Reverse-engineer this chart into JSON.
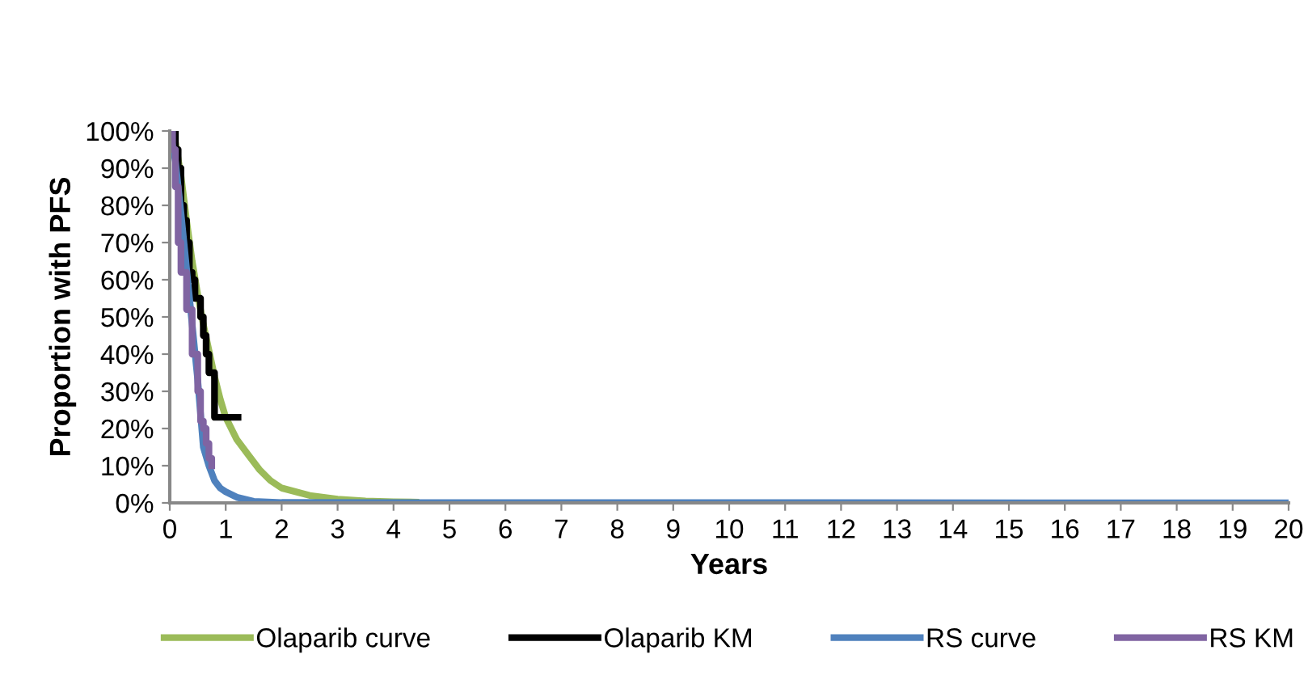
{
  "chart_data": {
    "type": "line",
    "xlabel": "Years",
    "ylabel": "Proportion with PFS",
    "xlim": [
      0,
      20
    ],
    "xticks": [
      0,
      1,
      2,
      3,
      4,
      5,
      6,
      7,
      8,
      9,
      10,
      11,
      12,
      13,
      14,
      15,
      16,
      17,
      18,
      19,
      20
    ],
    "ylim": [
      0,
      100
    ],
    "yticks": [
      {
        "value": 0,
        "label": "0%"
      },
      {
        "value": 10,
        "label": "10%"
      },
      {
        "value": 20,
        "label": "20%"
      },
      {
        "value": 30,
        "label": "30%"
      },
      {
        "value": 40,
        "label": "40%"
      },
      {
        "value": 50,
        "label": "50%"
      },
      {
        "value": 60,
        "label": "60%"
      },
      {
        "value": 70,
        "label": "70%"
      },
      {
        "value": 80,
        "label": "80%"
      },
      {
        "value": 90,
        "label": "90%"
      },
      {
        "value": 100,
        "label": "100%"
      }
    ],
    "grid": false,
    "legend": "bottom",
    "marker": "none",
    "line_style": "solid",
    "series": [
      {
        "name": "Olaparib curve",
        "color": "#9bbb59",
        "x": [
          0,
          0.1,
          0.2,
          0.3,
          0.4,
          0.5,
          0.6,
          0.7,
          0.8,
          0.9,
          1,
          1.2,
          1.4,
          1.6,
          1.8,
          2,
          2.5,
          3,
          3.5,
          4,
          4.4
        ],
        "values": [
          100,
          97,
          88,
          76,
          65,
          56,
          48,
          41,
          34,
          28,
          23,
          17,
          13,
          9,
          6,
          4,
          2,
          1,
          0.5,
          0.3,
          0.2
        ]
      },
      {
        "name": "Olaparib KM",
        "color": "#000000",
        "type": "step",
        "x": [
          0,
          0.1,
          0.15,
          0.2,
          0.25,
          0.3,
          0.35,
          0.4,
          0.45,
          0.55,
          0.6,
          0.65,
          0.7,
          0.8,
          1.22
        ],
        "values": [
          100,
          95,
          90,
          80,
          76,
          70,
          62,
          60,
          55,
          50,
          45,
          40,
          35,
          23,
          23
        ]
      },
      {
        "name": "RS curve",
        "color": "#4f81bd",
        "x": [
          0,
          0.1,
          0.2,
          0.3,
          0.4,
          0.5,
          0.6,
          0.7,
          0.8,
          0.9,
          1,
          1.2,
          1.5,
          2,
          20
        ],
        "values": [
          100,
          92,
          78,
          63,
          48,
          33,
          15,
          10,
          6,
          4,
          3,
          1.5,
          0.4,
          0.1,
          0
        ]
      },
      {
        "name": "RS KM",
        "color": "#8064a2",
        "type": "step",
        "x": [
          0,
          0.05,
          0.1,
          0.15,
          0.2,
          0.3,
          0.4,
          0.5,
          0.55,
          0.6,
          0.65,
          0.7,
          0.75
        ],
        "values": [
          100,
          95,
          85,
          70,
          62,
          52,
          40,
          30,
          22,
          20,
          16,
          12,
          10
        ]
      }
    ]
  }
}
